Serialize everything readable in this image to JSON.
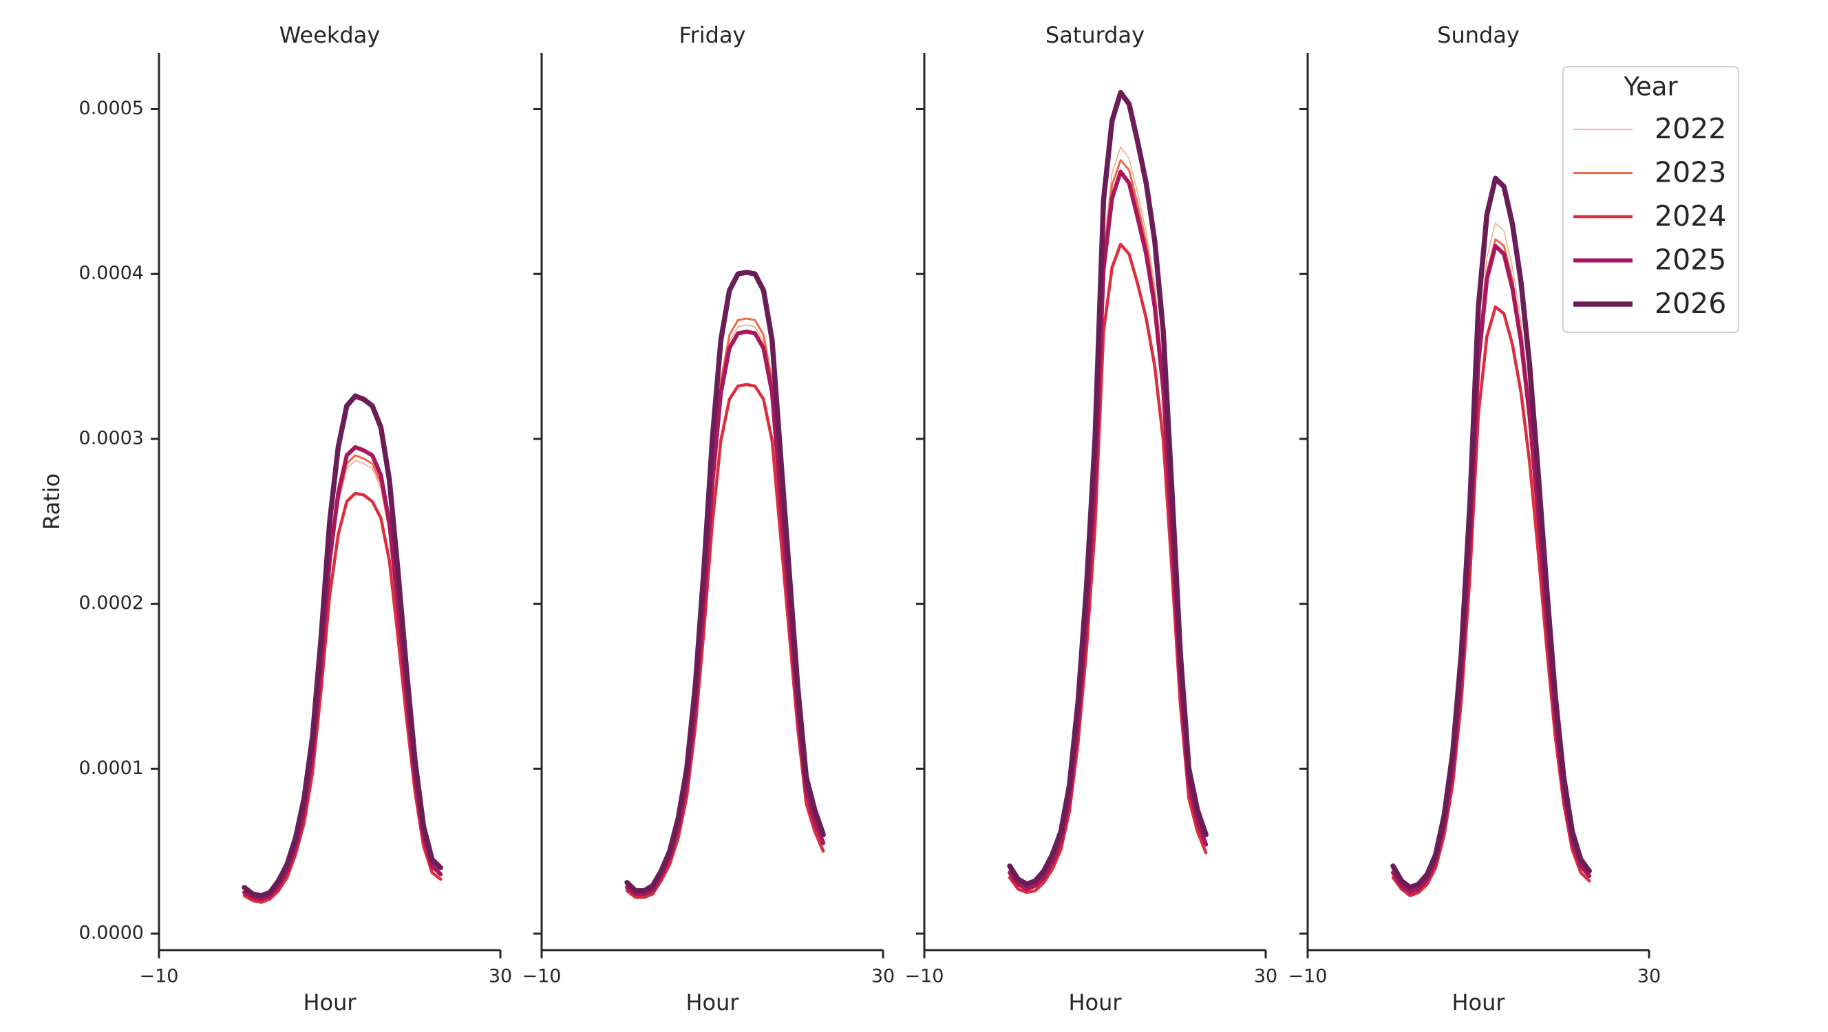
{
  "chart_data": [
    {
      "type": "line",
      "title": "Weekday",
      "xlabel": "Hour",
      "ylabel": "Ratio",
      "x": [
        0,
        1,
        2,
        3,
        4,
        5,
        6,
        7,
        8,
        9,
        10,
        11,
        12,
        13,
        14,
        15,
        16,
        17,
        18,
        19,
        20,
        21,
        22,
        23
      ],
      "xlim": [
        -10,
        30
      ],
      "xticks": [
        {
          "value": -10,
          "label": "−10"
        },
        30
      ],
      "ylim": [
        -1e-05,
        0.000534
      ],
      "yticks": [
        {
          "value": 0,
          "label": "0.0000"
        },
        0.0001,
        0.0002,
        0.0003,
        0.0004,
        0.0005
      ],
      "series": [
        {
          "name": "2022",
          "color": "#f3a583",
          "linewidth": 1.5,
          "values": [
            2.5e-05,
            2.1e-05,
            2e-05,
            2.2e-05,
            2.8e-05,
            3.7e-05,
            5.1e-05,
            7.2e-05,
            0.000106,
            0.000158,
            0.00022,
            0.00026,
            0.000282,
            0.000287,
            0.000285,
            0.000282,
            0.00027,
            0.000242,
            0.000194,
            0.000141,
            9.2e-05,
            5.7e-05,
            4e-05,
            3.5e-05
          ]
        },
        {
          "name": "2023",
          "color": "#ec6a4b",
          "linewidth": 3,
          "values": [
            2.5e-05,
            2.1e-05,
            2e-05,
            2.2e-05,
            2.8e-05,
            3.7e-05,
            5.2e-05,
            7.3e-05,
            0.000107,
            0.00016,
            0.000223,
            0.000263,
            0.000285,
            0.00029,
            0.000288,
            0.000285,
            0.000273,
            0.000245,
            0.000196,
            0.000142,
            9.3e-05,
            5.8e-05,
            4e-05,
            3.6e-05
          ]
        },
        {
          "name": "2024",
          "color": "#dc2f3e",
          "linewidth": 4.5,
          "values": [
            2.3e-05,
            2e-05,
            1.9e-05,
            2.1e-05,
            2.6e-05,
            3.4e-05,
            4.8e-05,
            6.7e-05,
            9.8e-05,
            0.000148,
            0.000205,
            0.000242,
            0.000262,
            0.000267,
            0.000266,
            0.000262,
            0.000252,
            0.000226,
            0.00018,
            0.000131,
            8.6e-05,
            5.3e-05,
            3.7e-05,
            3.3e-05
          ]
        },
        {
          "name": "2025",
          "color": "#a9175c",
          "linewidth": 6,
          "values": [
            2.5e-05,
            2.2e-05,
            2.1e-05,
            2.3e-05,
            2.9e-05,
            3.8e-05,
            5.2e-05,
            7.4e-05,
            0.000109,
            0.000163,
            0.000226,
            0.000267,
            0.00029,
            0.000295,
            0.000293,
            0.00029,
            0.000278,
            0.000249,
            0.000199,
            0.000145,
            9.5e-05,
            5.9e-05,
            4.1e-05,
            3.6e-05
          ]
        },
        {
          "name": "2026",
          "color": "#6b1d57",
          "linewidth": 7.5,
          "values": [
            2.8e-05,
            2.4e-05,
            2.3e-05,
            2.5e-05,
            3.2e-05,
            4.2e-05,
            5.8e-05,
            8.2e-05,
            0.00012,
            0.00018,
            0.00025,
            0.000295,
            0.00032,
            0.000326,
            0.000324,
            0.00032,
            0.000307,
            0.000275,
            0.00022,
            0.00016,
            0.000105,
            6.5e-05,
            4.5e-05,
            4e-05
          ]
        }
      ]
    },
    {
      "type": "line",
      "title": "Friday",
      "xlabel": "Hour",
      "x": [
        0,
        1,
        2,
        3,
        4,
        5,
        6,
        7,
        8,
        9,
        10,
        11,
        12,
        13,
        14,
        15,
        16,
        17,
        18,
        19,
        20,
        21,
        22,
        23
      ],
      "xlim": [
        -10,
        30
      ],
      "xticks": [
        {
          "value": -10,
          "label": "−10"
        },
        30
      ],
      "ylim": [
        -1e-05,
        0.000534
      ],
      "yticks": [
        0,
        0.0001,
        0.0002,
        0.0003,
        0.0004,
        0.0005
      ],
      "ytick_labels": false,
      "series": [
        {
          "name": "2022",
          "color": "#f3a583",
          "linewidth": 1.5,
          "values": [
            2.9e-05,
            2.4e-05,
            2.4e-05,
            2.7e-05,
            3.5e-05,
            4.6e-05,
            6.4e-05,
            9.2e-05,
            0.000138,
            0.000202,
            0.000276,
            0.000331,
            0.000359,
            0.000368,
            0.000369,
            0.000368,
            0.000359,
            0.000331,
            0.000267,
            0.000202,
            0.000138,
            8.7e-05,
            6.9e-05,
            5.5e-05
          ]
        },
        {
          "name": "2023",
          "color": "#ec6a4b",
          "linewidth": 3,
          "values": [
            2.9e-05,
            2.4e-05,
            2.4e-05,
            2.7e-05,
            3.5e-05,
            4.7e-05,
            6.5e-05,
            9.3e-05,
            0.00014,
            0.000205,
            0.000279,
            0.000335,
            0.000363,
            0.000372,
            0.000373,
            0.000372,
            0.000363,
            0.000335,
            0.00027,
            0.000205,
            0.00014,
            8.8e-05,
            7e-05,
            5.6e-05
          ]
        },
        {
          "name": "2024",
          "color": "#dc2f3e",
          "linewidth": 4.5,
          "values": [
            2.6e-05,
            2.2e-05,
            2.2e-05,
            2.4e-05,
            3.2e-05,
            4.2e-05,
            5.8e-05,
            8.3e-05,
            0.000125,
            0.000183,
            0.000249,
            0.000299,
            0.000324,
            0.000332,
            0.000333,
            0.000332,
            0.000324,
            0.000299,
            0.000241,
            0.000183,
            0.000125,
            7.9e-05,
            6.2e-05,
            5e-05
          ]
        },
        {
          "name": "2025",
          "color": "#a9175c",
          "linewidth": 6,
          "values": [
            2.8e-05,
            2.4e-05,
            2.4e-05,
            2.6e-05,
            3.5e-05,
            4.6e-05,
            6.4e-05,
            9.1e-05,
            0.000137,
            0.0002,
            0.000273,
            0.000328,
            0.000355,
            0.000364,
            0.000365,
            0.000364,
            0.000355,
            0.000328,
            0.000264,
            0.0002,
            0.000137,
            8.6e-05,
            6.8e-05,
            5.5e-05
          ]
        },
        {
          "name": "2026",
          "color": "#6b1d57",
          "linewidth": 7.5,
          "values": [
            3.1e-05,
            2.6e-05,
            2.6e-05,
            2.9e-05,
            3.8e-05,
            5e-05,
            7e-05,
            0.0001,
            0.00015,
            0.00022,
            0.0003,
            0.00036,
            0.00039,
            0.0004,
            0.000401,
            0.0004,
            0.00039,
            0.00036,
            0.00029,
            0.00022,
            0.00015,
            9.5e-05,
            7.5e-05,
            6e-05
          ]
        }
      ]
    },
    {
      "type": "line",
      "title": "Saturday",
      "xlabel": "Hour",
      "x": [
        0,
        1,
        2,
        3,
        4,
        5,
        6,
        7,
        8,
        9,
        10,
        11,
        12,
        13,
        14,
        15,
        16,
        17,
        18,
        19,
        20,
        21,
        22,
        23
      ],
      "xlim": [
        -10,
        30
      ],
      "xticks": [
        {
          "value": -10,
          "label": "−10"
        },
        30
      ],
      "ylim": [
        -1e-05,
        0.000534
      ],
      "yticks": [
        0,
        0.0001,
        0.0002,
        0.0003,
        0.0004,
        0.0005
      ],
      "ytick_labels": false,
      "series": [
        {
          "name": "2022",
          "color": "#f3a583",
          "linewidth": 1.5,
          "values": [
            3.8e-05,
            3.1e-05,
            2.8e-05,
            3e-05,
            3.6e-05,
            4.5e-05,
            5.8e-05,
            8.4e-05,
            0.000131,
            0.000196,
            0.000281,
            0.000416,
            0.000461,
            0.000477,
            0.00047,
            0.000449,
            0.000425,
            0.000393,
            0.000341,
            0.000252,
            0.000159,
            9.4e-05,
            7e-05,
            5.6e-05
          ]
        },
        {
          "name": "2023",
          "color": "#ec6a4b",
          "linewidth": 3,
          "values": [
            3.8e-05,
            3e-05,
            2.8e-05,
            2.9e-05,
            3.5e-05,
            4.4e-05,
            5.7e-05,
            8.3e-05,
            0.000129,
            0.000193,
            0.000276,
            0.000409,
            0.000454,
            0.000469,
            0.000463,
            0.000442,
            0.000419,
            0.000386,
            0.000336,
            0.000248,
            0.000156,
            9.2e-05,
            6.9e-05,
            5.5e-05
          ]
        },
        {
          "name": "2024",
          "color": "#dc2f3e",
          "linewidth": 4.5,
          "values": [
            3.4e-05,
            2.7e-05,
            2.5e-05,
            2.6e-05,
            3.1e-05,
            3.9e-05,
            5.1e-05,
            7.4e-05,
            0.000115,
            0.000172,
            0.000246,
            0.000365,
            0.000404,
            0.000418,
            0.000412,
            0.000394,
            0.000373,
            0.000344,
            0.000299,
            0.000221,
            0.000139,
            8.2e-05,
            6.2e-05,
            4.9e-05
          ]
        },
        {
          "name": "2025",
          "color": "#a9175c",
          "linewidth": 6,
          "values": [
            3.7e-05,
            3e-05,
            2.7e-05,
            2.9e-05,
            3.4e-05,
            4.3e-05,
            5.6e-05,
            8.1e-05,
            0.000127,
            0.00019,
            0.000272,
            0.000403,
            0.000446,
            0.000462,
            0.000455,
            0.000434,
            0.000412,
            0.00038,
            0.00033,
            0.000244,
            0.000154,
            9.1e-05,
            6.8e-05,
            5.4e-05
          ]
        },
        {
          "name": "2026",
          "color": "#6b1d57",
          "linewidth": 7.5,
          "values": [
            4.1e-05,
            3.3e-05,
            3e-05,
            3.2e-05,
            3.8e-05,
            4.8e-05,
            6.2e-05,
            9e-05,
            0.00014,
            0.00021,
            0.0003,
            0.000445,
            0.000493,
            0.00051,
            0.000503,
            0.00048,
            0.000455,
            0.00042,
            0.000365,
            0.00027,
            0.00017,
            0.0001,
            7.5e-05,
            6e-05
          ]
        }
      ]
    },
    {
      "type": "line",
      "title": "Sunday",
      "xlabel": "Hour",
      "x": [
        0,
        1,
        2,
        3,
        4,
        5,
        6,
        7,
        8,
        9,
        10,
        11,
        12,
        13,
        14,
        15,
        16,
        17,
        18,
        19,
        20,
        21,
        22,
        23
      ],
      "xlim": [
        -10,
        30
      ],
      "xticks": [
        {
          "value": -10,
          "label": "−10"
        },
        30
      ],
      "ylim": [
        -1e-05,
        0.000534
      ],
      "yticks": [
        0,
        0.0001,
        0.0002,
        0.0003,
        0.0004,
        0.0005
      ],
      "ytick_labels": false,
      "legend": "upper right",
      "legend_title": "Year",
      "series": [
        {
          "name": "2022",
          "color": "#f3a583",
          "linewidth": 1.5,
          "values": [
            3.9e-05,
            3e-05,
            2.6e-05,
            2.8e-05,
            3.4e-05,
            4.5e-05,
            6.8e-05,
            0.000103,
            0.00016,
            0.000244,
            0.000357,
            0.00041,
            0.000431,
            0.000426,
            0.000404,
            0.000371,
            0.000324,
            0.000263,
            0.000197,
            0.000136,
            8.9e-05,
            5.8e-05,
            4.2e-05,
            3.6e-05
          ]
        },
        {
          "name": "2023",
          "color": "#ec6a4b",
          "linewidth": 3,
          "values": [
            3.8e-05,
            2.9e-05,
            2.6e-05,
            2.8e-05,
            3.3e-05,
            4.4e-05,
            6.6e-05,
            0.000101,
            0.000156,
            0.000239,
            0.00035,
            0.000401,
            0.000421,
            0.000417,
            0.000396,
            0.000363,
            0.000317,
            0.000258,
            0.000193,
            0.000133,
            8.7e-05,
            5.7e-05,
            4.1e-05,
            3.5e-05
          ]
        },
        {
          "name": "2024",
          "color": "#dc2f3e",
          "linewidth": 4.5,
          "values": [
            3.4e-05,
            2.7e-05,
            2.3e-05,
            2.5e-05,
            3e-05,
            4e-05,
            6e-05,
            9.1e-05,
            0.000141,
            0.000216,
            0.000315,
            0.000362,
            0.00038,
            0.000376,
            0.000357,
            0.000328,
            0.000286,
            0.000232,
            0.000174,
            0.00012,
            7.9e-05,
            5.1e-05,
            3.7e-05,
            3.2e-05
          ]
        },
        {
          "name": "2025",
          "color": "#a9175c",
          "linewidth": 6,
          "values": [
            3.7e-05,
            2.9e-05,
            2.5e-05,
            2.7e-05,
            3.3e-05,
            4.4e-05,
            6.6e-05,
            0.0001,
            0.000155,
            0.000237,
            0.000346,
            0.000397,
            0.000417,
            0.000412,
            0.000391,
            0.000359,
            0.000314,
            0.000255,
            0.000191,
            0.000132,
            8.6e-05,
            5.6e-05,
            4.1e-05,
            3.5e-05
          ]
        },
        {
          "name": "2026",
          "color": "#6b1d57",
          "linewidth": 7.5,
          "values": [
            4.1e-05,
            3.2e-05,
            2.8e-05,
            3e-05,
            3.6e-05,
            4.8e-05,
            7.2e-05,
            0.00011,
            0.00017,
            0.00026,
            0.00038,
            0.000436,
            0.000458,
            0.000453,
            0.00043,
            0.000395,
            0.000345,
            0.00028,
            0.00021,
            0.000145,
            9.5e-05,
            6.2e-05,
            4.5e-05,
            3.8e-05
          ]
        }
      ]
    }
  ]
}
